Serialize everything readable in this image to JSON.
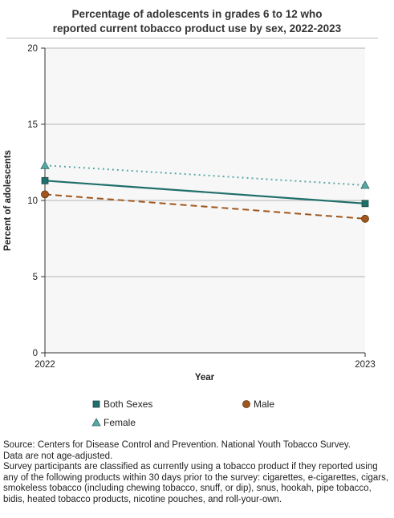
{
  "title_line1": "Percentage of adolescents in grades 6 to 12 who",
  "title_line2": "reported current tobacco product use by sex, 2022-2023",
  "chart_data": {
    "type": "line",
    "title": "Percentage of adolescents in grades 6 to 12 who reported current tobacco product use by sex, 2022-2023",
    "xlabel": "Year",
    "ylabel": "Percent of adolescents",
    "x": [
      "2022",
      "2023"
    ],
    "ylim": [
      0,
      20
    ],
    "yticks": [
      0,
      5,
      10,
      15,
      20
    ],
    "grid": true,
    "legend_position": "bottom",
    "series": [
      {
        "name": "Both Sexes",
        "values": [
          11.3,
          9.8
        ],
        "color": "#1f6f6a",
        "marker": "square",
        "line": "solid"
      },
      {
        "name": "Male",
        "values": [
          10.4,
          8.8
        ],
        "color": "#a0561c",
        "marker": "circle",
        "line": "dashed"
      },
      {
        "name": "Female",
        "values": [
          12.3,
          11.0
        ],
        "color": "#5aa7a3",
        "marker": "triangle",
        "line": "dotted"
      }
    ]
  },
  "notes": {
    "source": "Source: Centers for Disease Control and Prevention. National Youth Tobacco Survey.",
    "age": "Data are not age-adjusted.",
    "definition": "Survey participants are classified as currently using a tobacco product if they reported using any of the following products within 30 days prior to the survey: cigarettes, e-cigarettes, cigars, smokeless tobacco (including chewing tobacco, snuff, or dip), snus, hookah, pipe tobacco, bidis, heated tobacco products, nicotine pouches, and roll-your-own."
  }
}
